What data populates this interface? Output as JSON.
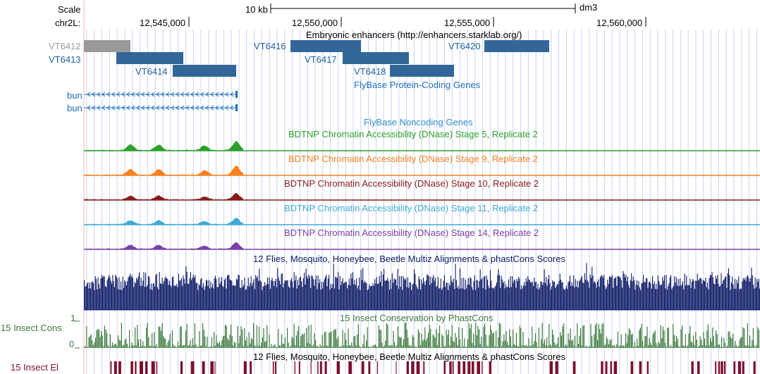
{
  "ruler": {
    "scale_label": "Scale",
    "chrom_label": "chr2L:",
    "scale_bar_label": "10 kb",
    "assembly": "dm3",
    "positions": [
      "12,545,000",
      "12,550,000",
      "12,555,000",
      "12,560,000"
    ]
  },
  "tracks": {
    "enhancers": {
      "title": "Embryonic enhancers (http://enhancers.starklab.org/)",
      "items": [
        {
          "name": "VT6412",
          "color": "#999999"
        },
        {
          "name": "VT6413",
          "color": "#336699"
        },
        {
          "name": "VT6414",
          "color": "#336699"
        },
        {
          "name": "VT6416",
          "color": "#336699"
        },
        {
          "name": "VT6417",
          "color": "#336699"
        },
        {
          "name": "VT6418",
          "color": "#336699"
        },
        {
          "name": "VT6420",
          "color": "#336699"
        }
      ]
    },
    "flybase_coding": {
      "title": "FlyBase Protein-Coding Genes",
      "genes": [
        "bun",
        "bun"
      ],
      "color": "#1f6fbf"
    },
    "flybase_noncoding": {
      "title": "FlyBase Noncoding Genes",
      "color": "#2f8fcf"
    },
    "dnase": [
      {
        "title": "BDTNP Chromatin Accessibility (DNase) Stage 5, Replicate 2",
        "color": "#2ca02c"
      },
      {
        "title": "BDTNP Chromatin Accessibility (DNase) Stage 9, Replicate 2",
        "color": "#f5801f"
      },
      {
        "title": "BDTNP Chromatin Accessibility (DNase) Stage 10, Replicate 2",
        "color": "#8b1a1a"
      },
      {
        "title": "BDTNP Chromatin Accessibility (DNase) Stage 11, Replicate 2",
        "color": "#3fa9d5"
      },
      {
        "title": "BDTNP Chromatin Accessibility (DNase) Stage 14, Replicate 2",
        "color": "#7b3fa8"
      }
    ],
    "multiz": {
      "title": "12 Flies, Mosquito, Honeybee, Beetle Multiz Alignments & phastCons Scores",
      "color": "#0d1a66"
    },
    "phastcons": {
      "title": "15 Insect Conservation by PhastCons",
      "side_label": "15 Insect Cons",
      "scale_max": "1",
      "scale_min": "0",
      "color": "#3c7a3c"
    },
    "elements": {
      "title": "12 Flies, Mosquito, Honeybee, Beetle Multiz Alignments & phastCons Scores",
      "side_label": "15 Insect El",
      "color": "#7b0f2b"
    }
  }
}
